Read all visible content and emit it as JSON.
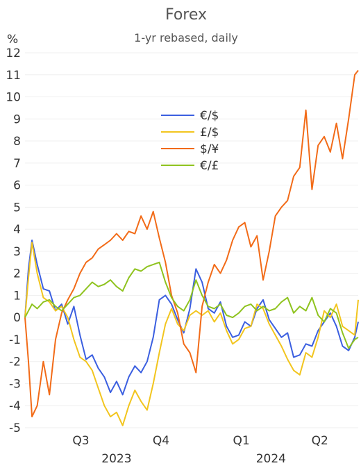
{
  "chart_data": {
    "type": "line",
    "title": "Forex",
    "subtitle": "1-yr rebased, daily",
    "y_unit": "%",
    "ylim": [
      -5,
      12
    ],
    "xlim": [
      "2023-06-12",
      "2024-06-28"
    ],
    "grid": true,
    "legend_position": "center",
    "y_ticks": [
      12,
      11,
      10,
      9,
      8,
      7,
      6,
      5,
      4,
      3,
      2,
      1,
      0,
      -1,
      -2,
      -3,
      -4,
      -5
    ],
    "y_tick_labels": [
      "12",
      "11",
      "10",
      "9",
      "8",
      "7",
      "6",
      "5",
      "4",
      "3",
      "2",
      "1",
      "0",
      "-1",
      "-2",
      "-3",
      "-4",
      "-5"
    ],
    "negative_tick_color": "#e0305a",
    "x_quarter_labels": [
      {
        "label": "Q3",
        "date": "2023-08-15"
      },
      {
        "label": "Q4",
        "date": "2023-11-15"
      },
      {
        "label": "Q1",
        "date": "2024-02-15"
      },
      {
        "label": "Q2",
        "date": "2024-05-15"
      }
    ],
    "x_year_labels": [
      {
        "label": "2023",
        "date": "2023-09-25"
      },
      {
        "label": "2024",
        "date": "2024-03-20"
      }
    ],
    "series": [
      {
        "name": "€/$",
        "color": "#3b5fe0",
        "points": [
          [
            "2023-06-12",
            0
          ],
          [
            "2023-06-16",
            2.2
          ],
          [
            "2023-06-20",
            3.5
          ],
          [
            "2023-06-26",
            2.4
          ],
          [
            "2023-07-03",
            1.3
          ],
          [
            "2023-07-10",
            1.2
          ],
          [
            "2023-07-17",
            0.3
          ],
          [
            "2023-07-24",
            0.6
          ],
          [
            "2023-07-31",
            -0.3
          ],
          [
            "2023-08-07",
            0.5
          ],
          [
            "2023-08-14",
            -0.8
          ],
          [
            "2023-08-21",
            -1.9
          ],
          [
            "2023-08-28",
            -1.7
          ],
          [
            "2023-09-04",
            -2.3
          ],
          [
            "2023-09-11",
            -2.7
          ],
          [
            "2023-09-18",
            -3.4
          ],
          [
            "2023-09-25",
            -2.9
          ],
          [
            "2023-10-02",
            -3.5
          ],
          [
            "2023-10-09",
            -2.7
          ],
          [
            "2023-10-16",
            -2.2
          ],
          [
            "2023-10-23",
            -2.5
          ],
          [
            "2023-10-30",
            -2.0
          ],
          [
            "2023-11-06",
            -0.9
          ],
          [
            "2023-11-13",
            0.8
          ],
          [
            "2023-11-20",
            1.0
          ],
          [
            "2023-11-27",
            0.6
          ],
          [
            "2023-12-04",
            -0.1
          ],
          [
            "2023-12-11",
            -0.7
          ],
          [
            "2023-12-18",
            0.4
          ],
          [
            "2023-12-25",
            2.2
          ],
          [
            "2024-01-01",
            1.6
          ],
          [
            "2024-01-08",
            0.4
          ],
          [
            "2024-01-15",
            0.2
          ],
          [
            "2024-01-22",
            0.7
          ],
          [
            "2024-01-29",
            -0.4
          ],
          [
            "2024-02-05",
            -0.9
          ],
          [
            "2024-02-12",
            -0.8
          ],
          [
            "2024-02-19",
            -0.2
          ],
          [
            "2024-02-26",
            -0.4
          ],
          [
            "2024-03-04",
            0.4
          ],
          [
            "2024-03-11",
            0.8
          ],
          [
            "2024-03-18",
            -0.1
          ],
          [
            "2024-03-25",
            -0.5
          ],
          [
            "2024-04-01",
            -0.9
          ],
          [
            "2024-04-08",
            -0.7
          ],
          [
            "2024-04-15",
            -1.8
          ],
          [
            "2024-04-22",
            -1.7
          ],
          [
            "2024-04-29",
            -1.2
          ],
          [
            "2024-05-06",
            -1.3
          ],
          [
            "2024-05-13",
            -0.6
          ],
          [
            "2024-05-20",
            -0.2
          ],
          [
            "2024-05-27",
            0.2
          ],
          [
            "2024-06-03",
            -0.4
          ],
          [
            "2024-06-10",
            -1.3
          ],
          [
            "2024-06-17",
            -1.5
          ],
          [
            "2024-06-24",
            -0.9
          ],
          [
            "2024-06-28",
            -0.2
          ]
        ]
      },
      {
        "name": "£/$",
        "color": "#f2c51e",
        "points": [
          [
            "2023-06-12",
            0
          ],
          [
            "2023-06-16",
            1.8
          ],
          [
            "2023-06-20",
            3.4
          ],
          [
            "2023-06-26",
            2.0
          ],
          [
            "2023-07-03",
            0.9
          ],
          [
            "2023-07-10",
            0.7
          ],
          [
            "2023-07-17",
            0.3
          ],
          [
            "2023-07-24",
            0.5
          ],
          [
            "2023-07-31",
            0.0
          ],
          [
            "2023-08-07",
            -1.0
          ],
          [
            "2023-08-14",
            -1.8
          ],
          [
            "2023-08-21",
            -2.0
          ],
          [
            "2023-08-28",
            -2.4
          ],
          [
            "2023-09-04",
            -3.2
          ],
          [
            "2023-09-11",
            -4.0
          ],
          [
            "2023-09-18",
            -4.5
          ],
          [
            "2023-09-25",
            -4.3
          ],
          [
            "2023-10-02",
            -4.9
          ],
          [
            "2023-10-09",
            -4.0
          ],
          [
            "2023-10-16",
            -3.3
          ],
          [
            "2023-10-23",
            -3.8
          ],
          [
            "2023-10-30",
            -4.2
          ],
          [
            "2023-11-06",
            -3.0
          ],
          [
            "2023-11-13",
            -1.6
          ],
          [
            "2023-11-20",
            -0.3
          ],
          [
            "2023-11-27",
            0.4
          ],
          [
            "2023-12-04",
            -0.3
          ],
          [
            "2023-12-11",
            -0.6
          ],
          [
            "2023-12-18",
            0.1
          ],
          [
            "2023-12-25",
            0.3
          ],
          [
            "2024-01-01",
            0.1
          ],
          [
            "2024-01-08",
            0.3
          ],
          [
            "2024-01-15",
            -0.2
          ],
          [
            "2024-01-22",
            0.2
          ],
          [
            "2024-01-29",
            -0.6
          ],
          [
            "2024-02-05",
            -1.2
          ],
          [
            "2024-02-12",
            -1.0
          ],
          [
            "2024-02-19",
            -0.5
          ],
          [
            "2024-02-26",
            -0.4
          ],
          [
            "2024-03-04",
            0.6
          ],
          [
            "2024-03-11",
            0.4
          ],
          [
            "2024-03-18",
            -0.3
          ],
          [
            "2024-03-25",
            -0.8
          ],
          [
            "2024-04-01",
            -1.3
          ],
          [
            "2024-04-08",
            -1.9
          ],
          [
            "2024-04-15",
            -2.4
          ],
          [
            "2024-04-22",
            -2.6
          ],
          [
            "2024-04-29",
            -1.6
          ],
          [
            "2024-05-06",
            -1.8
          ],
          [
            "2024-05-13",
            -0.9
          ],
          [
            "2024-05-20",
            0.3
          ],
          [
            "2024-05-27",
            0.0
          ],
          [
            "2024-06-03",
            0.6
          ],
          [
            "2024-06-10",
            -0.4
          ],
          [
            "2024-06-17",
            -0.6
          ],
          [
            "2024-06-24",
            -0.8
          ],
          [
            "2024-06-28",
            0.8
          ]
        ]
      },
      {
        "name": "$/¥",
        "color": "#f26b18",
        "points": [
          [
            "2023-06-12",
            0
          ],
          [
            "2023-06-16",
            -2.0
          ],
          [
            "2023-06-20",
            -4.5
          ],
          [
            "2023-06-26",
            -4.0
          ],
          [
            "2023-07-03",
            -2.0
          ],
          [
            "2023-07-10",
            -3.5
          ],
          [
            "2023-07-17",
            -1.0
          ],
          [
            "2023-07-24",
            0.2
          ],
          [
            "2023-07-31",
            0.8
          ],
          [
            "2023-08-07",
            1.3
          ],
          [
            "2023-08-14",
            2.0
          ],
          [
            "2023-08-21",
            2.5
          ],
          [
            "2023-08-28",
            2.7
          ],
          [
            "2023-09-04",
            3.1
          ],
          [
            "2023-09-11",
            3.3
          ],
          [
            "2023-09-18",
            3.5
          ],
          [
            "2023-09-25",
            3.8
          ],
          [
            "2023-10-02",
            3.5
          ],
          [
            "2023-10-09",
            3.9
          ],
          [
            "2023-10-16",
            3.8
          ],
          [
            "2023-10-23",
            4.6
          ],
          [
            "2023-10-30",
            4.0
          ],
          [
            "2023-11-06",
            4.8
          ],
          [
            "2023-11-13",
            3.6
          ],
          [
            "2023-11-20",
            2.5
          ],
          [
            "2023-11-27",
            1.0
          ],
          [
            "2023-12-04",
            0.2
          ],
          [
            "2023-12-11",
            -1.2
          ],
          [
            "2023-12-18",
            -1.6
          ],
          [
            "2023-12-25",
            -2.5
          ],
          [
            "2024-01-01",
            0.5
          ],
          [
            "2024-01-08",
            1.6
          ],
          [
            "2024-01-15",
            2.4
          ],
          [
            "2024-01-22",
            2.0
          ],
          [
            "2024-01-29",
            2.6
          ],
          [
            "2024-02-05",
            3.5
          ],
          [
            "2024-02-12",
            4.1
          ],
          [
            "2024-02-19",
            4.3
          ],
          [
            "2024-02-26",
            3.2
          ],
          [
            "2024-03-04",
            3.7
          ],
          [
            "2024-03-11",
            1.7
          ],
          [
            "2024-03-18",
            3.0
          ],
          [
            "2024-03-25",
            4.6
          ],
          [
            "2024-04-01",
            5.0
          ],
          [
            "2024-04-08",
            5.3
          ],
          [
            "2024-04-15",
            6.4
          ],
          [
            "2024-04-22",
            6.8
          ],
          [
            "2024-04-29",
            9.4
          ],
          [
            "2024-05-06",
            5.8
          ],
          [
            "2024-05-13",
            7.8
          ],
          [
            "2024-05-20",
            8.2
          ],
          [
            "2024-05-27",
            7.5
          ],
          [
            "2024-06-03",
            8.8
          ],
          [
            "2024-06-10",
            7.2
          ],
          [
            "2024-06-17",
            9.0
          ],
          [
            "2024-06-24",
            11.0
          ],
          [
            "2024-06-28",
            11.2
          ]
        ]
      },
      {
        "name": "€/£",
        "color": "#8fc31f",
        "points": [
          [
            "2023-06-12",
            0
          ],
          [
            "2023-06-16",
            0.3
          ],
          [
            "2023-06-20",
            0.6
          ],
          [
            "2023-06-26",
            0.4
          ],
          [
            "2023-07-03",
            0.7
          ],
          [
            "2023-07-10",
            0.8
          ],
          [
            "2023-07-17",
            0.5
          ],
          [
            "2023-07-24",
            0.3
          ],
          [
            "2023-07-31",
            0.6
          ],
          [
            "2023-08-07",
            0.9
          ],
          [
            "2023-08-14",
            1.0
          ],
          [
            "2023-08-21",
            1.3
          ],
          [
            "2023-08-28",
            1.6
          ],
          [
            "2023-09-04",
            1.4
          ],
          [
            "2023-09-11",
            1.5
          ],
          [
            "2023-09-18",
            1.7
          ],
          [
            "2023-09-25",
            1.4
          ],
          [
            "2023-10-02",
            1.2
          ],
          [
            "2023-10-09",
            1.8
          ],
          [
            "2023-10-16",
            2.2
          ],
          [
            "2023-10-23",
            2.1
          ],
          [
            "2023-10-30",
            2.3
          ],
          [
            "2023-11-06",
            2.4
          ],
          [
            "2023-11-13",
            2.5
          ],
          [
            "2023-11-20",
            1.6
          ],
          [
            "2023-11-27",
            0.9
          ],
          [
            "2023-12-04",
            0.5
          ],
          [
            "2023-12-11",
            0.3
          ],
          [
            "2023-12-18",
            0.8
          ],
          [
            "2023-12-25",
            1.7
          ],
          [
            "2024-01-01",
            1.0
          ],
          [
            "2024-01-08",
            0.5
          ],
          [
            "2024-01-15",
            0.4
          ],
          [
            "2024-01-22",
            0.6
          ],
          [
            "2024-01-29",
            0.1
          ],
          [
            "2024-02-05",
            0.0
          ],
          [
            "2024-02-12",
            0.2
          ],
          [
            "2024-02-19",
            0.5
          ],
          [
            "2024-02-26",
            0.6
          ],
          [
            "2024-03-04",
            0.3
          ],
          [
            "2024-03-11",
            0.5
          ],
          [
            "2024-03-18",
            0.3
          ],
          [
            "2024-03-25",
            0.4
          ],
          [
            "2024-04-01",
            0.7
          ],
          [
            "2024-04-08",
            0.9
          ],
          [
            "2024-04-15",
            0.2
          ],
          [
            "2024-04-22",
            0.5
          ],
          [
            "2024-04-29",
            0.3
          ],
          [
            "2024-05-06",
            0.9
          ],
          [
            "2024-05-13",
            0.1
          ],
          [
            "2024-05-20",
            -0.2
          ],
          [
            "2024-05-27",
            0.4
          ],
          [
            "2024-06-03",
            0.2
          ],
          [
            "2024-06-10",
            -0.7
          ],
          [
            "2024-06-17",
            -1.4
          ],
          [
            "2024-06-24",
            -1.0
          ],
          [
            "2024-06-28",
            -0.9
          ]
        ]
      }
    ]
  }
}
